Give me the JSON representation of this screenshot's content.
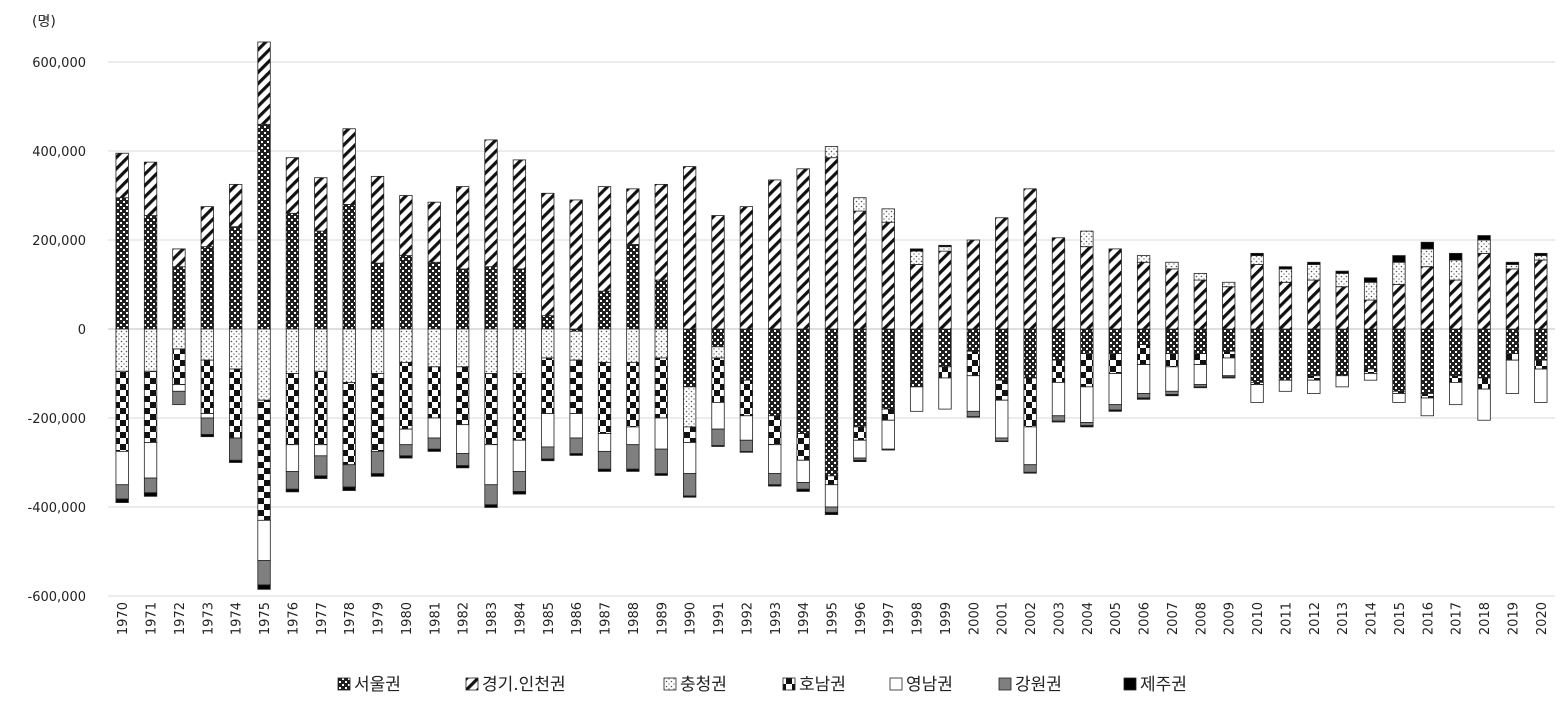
{
  "chart_data": {
    "type": "bar",
    "stacked": true,
    "unit_label": "(명)",
    "title": "",
    "xlabel": "",
    "ylabel": "",
    "ylim": [
      -600000,
      650000
    ],
    "yticks": [
      600000,
      400000,
      200000,
      0,
      -200000,
      -400000,
      -600000
    ],
    "ytick_labels": [
      "600,000",
      "400,000",
      "200,000",
      "0",
      "-200,000",
      "-400,000",
      "-600,000"
    ],
    "grid": true,
    "legend_position": "bottom",
    "categories": [
      "1970",
      "1971",
      "1972",
      "1973",
      "1974",
      "1975",
      "1976",
      "1977",
      "1978",
      "1979",
      "1980",
      "1981",
      "1982",
      "1983",
      "1984",
      "1985",
      "1986",
      "1987",
      "1988",
      "1989",
      "1990",
      "1991",
      "1992",
      "1993",
      "1994",
      "1995",
      "1996",
      "1997",
      "1998",
      "1999",
      "2000",
      "2001",
      "2002",
      "2003",
      "2004",
      "2005",
      "2006",
      "2007",
      "2008",
      "2009",
      "2010",
      "2011",
      "2012",
      "2013",
      "2014",
      "2015",
      "2016",
      "2017",
      "2018",
      "2019",
      "2020"
    ],
    "series": [
      {
        "name": "서울권",
        "pattern": "checker-dark",
        "values": [
          295000,
          255000,
          140000,
          185000,
          230000,
          460000,
          260000,
          220000,
          280000,
          148000,
          165000,
          150000,
          135000,
          140000,
          135000,
          30000,
          -5000,
          85000,
          190000,
          110000,
          -130000,
          -40000,
          -115000,
          -195000,
          -235000,
          -330000,
          -220000,
          -180000,
          -130000,
          -85000,
          -50000,
          -115000,
          -110000,
          -70000,
          -55000,
          -55000,
          -35000,
          -55000,
          -55000,
          -50000,
          -120000,
          -115000,
          -105000,
          -105000,
          -90000,
          -140000,
          -145000,
          -105000,
          -110000,
          -55000,
          -70000
        ]
      },
      {
        "name": "경기.인천권",
        "pattern": "diagonal",
        "values": [
          100000,
          120000,
          40000,
          90000,
          95000,
          185000,
          125000,
          120000,
          170000,
          195000,
          135000,
          135000,
          185000,
          285000,
          245000,
          275000,
          290000,
          235000,
          125000,
          215000,
          365000,
          255000,
          275000,
          335000,
          360000,
          385000,
          265000,
          240000,
          145000,
          175000,
          200000,
          250000,
          315000,
          205000,
          185000,
          180000,
          150000,
          135000,
          110000,
          95000,
          145000,
          105000,
          110000,
          95000,
          65000,
          100000,
          140000,
          110000,
          170000,
          135000,
          155000
        ]
      },
      {
        "name": "충청권",
        "pattern": "dots",
        "values": [
          -95000,
          -95000,
          -45000,
          -70000,
          -90000,
          -160000,
          -100000,
          -95000,
          -120000,
          -100000,
          -75000,
          -85000,
          -85000,
          -100000,
          -100000,
          -65000,
          -65000,
          -75000,
          -75000,
          -65000,
          -90000,
          -25000,
          0,
          0,
          0,
          25000,
          30000,
          30000,
          30000,
          10000,
          0,
          0,
          0,
          0,
          35000,
          0,
          15000,
          15000,
          15000,
          10000,
          20000,
          30000,
          35000,
          30000,
          40000,
          50000,
          40000,
          45000,
          30000,
          10000,
          10000
        ]
      },
      {
        "name": "호남권",
        "pattern": "checker-large",
        "values": [
          -180000,
          -160000,
          -80000,
          -120000,
          -155000,
          -270000,
          -160000,
          -165000,
          -185000,
          -175000,
          -150000,
          -115000,
          -130000,
          -160000,
          -150000,
          -125000,
          -120000,
          -160000,
          -145000,
          -135000,
          -35000,
          -100000,
          -80000,
          -65000,
          -60000,
          -20000,
          -30000,
          -25000,
          0,
          -25000,
          -55000,
          -45000,
          -110000,
          -50000,
          -75000,
          -45000,
          -45000,
          -30000,
          -25000,
          -15000,
          -5000,
          0,
          -10000,
          0,
          -10000,
          -5000,
          -10000,
          -15000,
          -25000,
          -15000,
          -20000
        ]
      },
      {
        "name": "영남권",
        "pattern": "white",
        "values": [
          -75000,
          -80000,
          -15000,
          -10000,
          0,
          -90000,
          -60000,
          -25000,
          0,
          0,
          -35000,
          -45000,
          -65000,
          -90000,
          -70000,
          -75000,
          -55000,
          -40000,
          -40000,
          -70000,
          -70000,
          -60000,
          -55000,
          -65000,
          -50000,
          -50000,
          -40000,
          -65000,
          -55000,
          -70000,
          -80000,
          -85000,
          -85000,
          -75000,
          -80000,
          -70000,
          -65000,
          -55000,
          -45000,
          -40000,
          -40000,
          -25000,
          -30000,
          -25000,
          -15000,
          -20000,
          -40000,
          -50000,
          -70000,
          -75000,
          -75000
        ]
      },
      {
        "name": "강원권",
        "pattern": "gray",
        "values": [
          -32000,
          -33000,
          -30000,
          -37000,
          -50000,
          -55000,
          -40000,
          -45000,
          -50000,
          -50000,
          -25000,
          -25000,
          -27000,
          -45000,
          -45000,
          -27000,
          -35000,
          -40000,
          -55000,
          -55000,
          -50000,
          -37000,
          -25000,
          -25000,
          -15000,
          -12000,
          -5000,
          0,
          0,
          0,
          -12000,
          -7000,
          -17000,
          -12000,
          -7000,
          -12000,
          -10000,
          -7000,
          -5000,
          -3000,
          0,
          0,
          0,
          0,
          0,
          0,
          0,
          0,
          0,
          0,
          0
        ]
      },
      {
        "name": "제주권",
        "pattern": "black",
        "values": [
          -8000,
          -8000,
          0,
          -5000,
          -5000,
          -10000,
          -6000,
          -6000,
          -8000,
          -6000,
          -5000,
          -5000,
          -5000,
          -6000,
          -6000,
          -4000,
          -4000,
          -5000,
          -5000,
          -4000,
          -3000,
          -2000,
          -2000,
          -3000,
          -5000,
          -5000,
          -3000,
          -2000,
          5000,
          3000,
          -1000,
          -1000,
          -2000,
          -2000,
          -3000,
          -3000,
          -3000,
          -3000,
          -2000,
          -2000,
          5000,
          5000,
          5000,
          5000,
          10000,
          15000,
          15000,
          15000,
          10000,
          5000,
          5000
        ]
      }
    ]
  }
}
